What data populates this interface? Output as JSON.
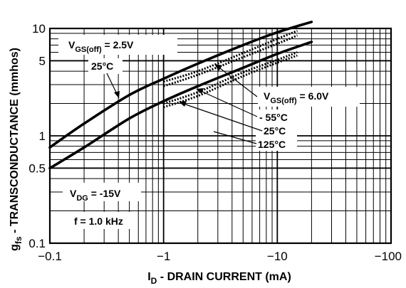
{
  "chart_data": {
    "type": "line",
    "x_scale": "log",
    "y_scale": "log",
    "xlim": [
      -0.1,
      -100
    ],
    "ylim": [
      0.1,
      10
    ],
    "grid": true,
    "x_ticks": [
      "−0.1",
      "−1",
      "−10",
      "−100"
    ],
    "y_ticks": [
      "0.1",
      "0.5",
      "1",
      "5",
      "10"
    ],
    "xlabel": {
      "main": "I",
      "sub": "D",
      "rest": " - DRAIN CURRENT (mA)"
    },
    "ylabel": {
      "main": "g",
      "sub": "fs",
      "rest": " - TRANSCONDUCTANCE (mmhos)"
    },
    "annotations": {
      "vgs1": {
        "main": "V",
        "sub": "GS(off)",
        "rest": " = 2.5V"
      },
      "t25_top": "25°C",
      "vgs2": {
        "main": "V",
        "sub": "GS(off)",
        "rest": " = 6.0V"
      },
      "tm55": "- 55°C",
      "t25": "25°C",
      "t125": "125°C",
      "vdg": {
        "main": "V",
        "sub": "DG",
        "rest": " = -15V"
      },
      "freq": "f = 1.0 kHz"
    },
    "series": [
      {
        "x": [
          -0.1,
          -0.2,
          -0.5,
          -1,
          -2,
          -5,
          -10,
          -20
        ],
        "y": [
          0.78,
          1.3,
          2.4,
          3.4,
          4.7,
          7.0,
          9.2,
          11.5
        ]
      },
      {
        "x": [
          -0.1,
          -0.2,
          -0.5,
          -1,
          -2,
          -5,
          -10,
          -20
        ],
        "y": [
          0.5,
          0.78,
          1.45,
          2.1,
          2.9,
          4.3,
          5.8,
          7.5
        ]
      },
      {
        "x": [
          -1,
          -2,
          -5,
          -10,
          -15
        ],
        "y": [
          3.2,
          4.0,
          5.9,
          8.0,
          9.5
        ]
      },
      {
        "x": [
          -1,
          -2,
          -5,
          -10,
          -15
        ],
        "y": [
          2.9,
          3.7,
          5.4,
          7.2,
          8.6
        ]
      },
      {
        "x": [
          -1,
          -2,
          -5,
          -10,
          -15
        ],
        "y": [
          2.0,
          2.55,
          3.9,
          5.1,
          6.0
        ]
      },
      {
        "x": [
          -1,
          -2,
          -5,
          -10,
          -15
        ],
        "y": [
          1.85,
          2.35,
          3.6,
          4.8,
          5.6
        ]
      }
    ]
  }
}
